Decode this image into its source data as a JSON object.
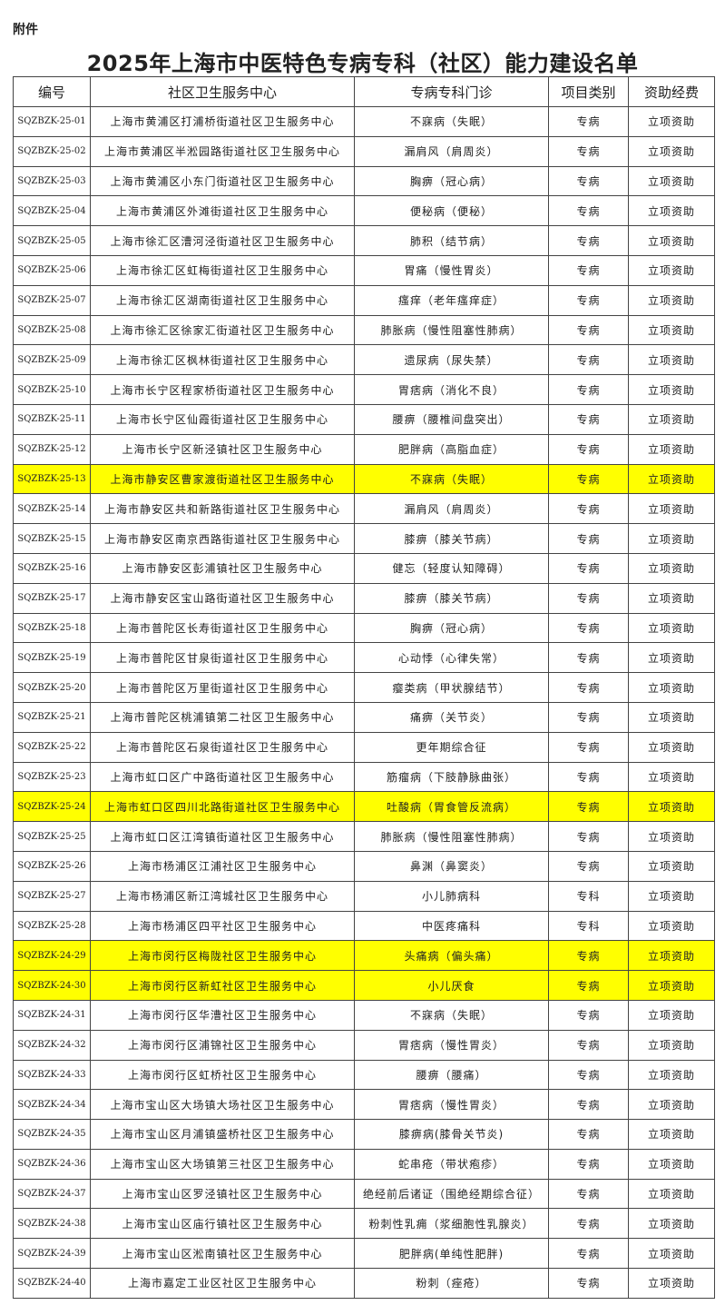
{
  "header": {
    "label": "附件",
    "title": "2025年上海市中医特色专病专科（社区）能力建设名单"
  },
  "table": {
    "columns": [
      "编号",
      "社区卫生服务中心",
      "专病专科门诊",
      "项目类别",
      "资助经费"
    ],
    "highlight_color": "#ffff00",
    "rows": [
      {
        "cells": [
          "SQZBZK-25-01",
          "上海市黄浦区打浦桥街道社区卫生服务中心",
          "不寐病（失眠）",
          "专病",
          "立项资助"
        ]
      },
      {
        "cells": [
          "SQZBZK-25-02",
          "上海市黄浦区半淞园路街道社区卫生服务中心",
          "漏肩风（肩周炎）",
          "专病",
          "立项资助"
        ]
      },
      {
        "cells": [
          "SQZBZK-25-03",
          "上海市黄浦区小东门街道社区卫生服务中心",
          "胸痹（冠心病）",
          "专病",
          "立项资助"
        ]
      },
      {
        "cells": [
          "SQZBZK-25-04",
          "上海市黄浦区外滩街道社区卫生服务中心",
          "便秘病（便秘）",
          "专病",
          "立项资助"
        ]
      },
      {
        "cells": [
          "SQZBZK-25-05",
          "上海市徐汇区漕河泾街道社区卫生服务中心",
          "肺积（结节病）",
          "专病",
          "立项资助"
        ]
      },
      {
        "cells": [
          "SQZBZK-25-06",
          "上海市徐汇区虹梅街道社区卫生服务中心",
          "胃痛（慢性胃炎）",
          "专病",
          "立项资助"
        ]
      },
      {
        "cells": [
          "SQZBZK-25-07",
          "上海市徐汇区湖南街道社区卫生服务中心",
          "瘙痒（老年瘙痒症）",
          "专病",
          "立项资助"
        ]
      },
      {
        "cells": [
          "SQZBZK-25-08",
          "上海市徐汇区徐家汇街道社区卫生服务中心",
          "肺胀病（慢性阻塞性肺病）",
          "专病",
          "立项资助"
        ]
      },
      {
        "cells": [
          "SQZBZK-25-09",
          "上海市徐汇区枫林街道社区卫生服务中心",
          "遗尿病（尿失禁）",
          "专病",
          "立项资助"
        ]
      },
      {
        "cells": [
          "SQZBZK-25-10",
          "上海市长宁区程家桥街道社区卫生服务中心",
          "胃痞病（消化不良）",
          "专病",
          "立项资助"
        ]
      },
      {
        "cells": [
          "SQZBZK-25-11",
          "上海市长宁区仙霞街道社区卫生服务中心",
          "腰痹（腰椎间盘突出）",
          "专病",
          "立项资助"
        ]
      },
      {
        "cells": [
          "SQZBZK-25-12",
          "上海市长宁区新泾镇社区卫生服务中心",
          "肥胖病（高脂血症）",
          "专病",
          "立项资助"
        ]
      },
      {
        "cells": [
          "SQZBZK-25-13",
          "上海市静安区曹家渡街道社区卫生服务中心",
          "不寐病（失眠）",
          "专病",
          "立项资助"
        ],
        "highlight": true
      },
      {
        "cells": [
          "SQZBZK-25-14",
          "上海市静安区共和新路街道社区卫生服务中心",
          "漏肩风（肩周炎）",
          "专病",
          "立项资助"
        ]
      },
      {
        "cells": [
          "SQZBZK-25-15",
          "上海市静安区南京西路街道社区卫生服务中心",
          "膝痹（膝关节病）",
          "专病",
          "立项资助"
        ]
      },
      {
        "cells": [
          "SQZBZK-25-16",
          "上海市静安区彭浦镇社区卫生服务中心",
          "健忘（轻度认知障碍）",
          "专病",
          "立项资助"
        ]
      },
      {
        "cells": [
          "SQZBZK-25-17",
          "上海市静安区宝山路街道社区卫生服务中心",
          "膝痹（膝关节病）",
          "专病",
          "立项资助"
        ]
      },
      {
        "cells": [
          "SQZBZK-25-18",
          "上海市普陀区长寿街道社区卫生服务中心",
          "胸痹（冠心病）",
          "专病",
          "立项资助"
        ]
      },
      {
        "cells": [
          "SQZBZK-25-19",
          "上海市普陀区甘泉街道社区卫生服务中心",
          "心动悸（心律失常）",
          "专病",
          "立项资助"
        ]
      },
      {
        "cells": [
          "SQZBZK-25-20",
          "上海市普陀区万里街道社区卫生服务中心",
          "瘿类病（甲状腺结节）",
          "专病",
          "立项资助"
        ]
      },
      {
        "cells": [
          "SQZBZK-25-21",
          "上海市普陀区桃浦镇第二社区卫生服务中心",
          "痛痹（关节炎）",
          "专病",
          "立项资助"
        ]
      },
      {
        "cells": [
          "SQZBZK-25-22",
          "上海市普陀区石泉街道社区卫生服务中心",
          "更年期综合征",
          "专病",
          "立项资助"
        ]
      },
      {
        "cells": [
          "SQZBZK-25-23",
          "上海市虹口区广中路街道社区卫生服务中心",
          "筋瘤病（下肢静脉曲张）",
          "专病",
          "立项资助"
        ]
      },
      {
        "cells": [
          "SQZBZK-25-24",
          "上海市虹口区四川北路街道社区卫生服务中心",
          "吐酸病（胃食管反流病）",
          "专病",
          "立项资助"
        ],
        "highlight": true
      },
      {
        "cells": [
          "SQZBZK-25-25",
          "上海市虹口区江湾镇街道社区卫生服务中心",
          "肺胀病（慢性阻塞性肺病）",
          "专病",
          "立项资助"
        ]
      },
      {
        "cells": [
          "SQZBZK-25-26",
          "上海市杨浦区江浦社区卫生服务中心",
          "鼻渊（鼻窦炎）",
          "专病",
          "立项资助"
        ]
      },
      {
        "cells": [
          "SQZBZK-25-27",
          "上海市杨浦区新江湾城社区卫生服务中心",
          "小儿肺病科",
          "专科",
          "立项资助"
        ]
      },
      {
        "cells": [
          "SQZBZK-25-28",
          "上海市杨浦区四平社区卫生服务中心",
          "中医疼痛科",
          "专科",
          "立项资助"
        ]
      },
      {
        "cells": [
          "SQZBZK-24-29",
          "上海市闵行区梅陇社区卫生服务中心",
          "头痛病（偏头痛）",
          "专病",
          "立项资助"
        ],
        "highlight": true
      },
      {
        "cells": [
          "SQZBZK-24-30",
          "上海市闵行区新虹社区卫生服务中心",
          "小儿厌食",
          "专病",
          "立项资助"
        ],
        "highlight": true
      },
      {
        "cells": [
          "SQZBZK-24-31",
          "上海市闵行区华漕社区卫生服务中心",
          "不寐病（失眠）",
          "专病",
          "立项资助"
        ]
      },
      {
        "cells": [
          "SQZBZK-24-32",
          "上海市闵行区浦锦社区卫生服务中心",
          "胃痞病（慢性胃炎）",
          "专病",
          "立项资助"
        ]
      },
      {
        "cells": [
          "SQZBZK-24-33",
          "上海市闵行区虹桥社区卫生服务中心",
          "腰痹（腰痛）",
          "专病",
          "立项资助"
        ]
      },
      {
        "cells": [
          "SQZBZK-24-34",
          "上海市宝山区大场镇大场社区卫生服务中心",
          "胃痞病（慢性胃炎）",
          "专病",
          "立项资助"
        ]
      },
      {
        "cells": [
          "SQZBZK-24-35",
          "上海市宝山区月浦镇盛桥社区卫生服务中心",
          "膝痹病(膝骨关节炎)",
          "专病",
          "立项资助"
        ]
      },
      {
        "cells": [
          "SQZBZK-24-36",
          "上海市宝山区大场镇第三社区卫生服务中心",
          "蛇串疮（带状疱疹）",
          "专病",
          "立项资助"
        ]
      },
      {
        "cells": [
          "SQZBZK-24-37",
          "上海市宝山区罗泾镇社区卫生服务中心",
          "绝经前后诸证（围绝经期综合征）",
          "专病",
          "立项资助"
        ]
      },
      {
        "cells": [
          "SQZBZK-24-38",
          "上海市宝山区庙行镇社区卫生服务中心",
          "粉刺性乳痈（浆细胞性乳腺炎）",
          "专病",
          "立项资助"
        ]
      },
      {
        "cells": [
          "SQZBZK-24-39",
          "上海市宝山区淞南镇社区卫生服务中心",
          "肥胖病(单纯性肥胖)",
          "专病",
          "立项资助"
        ]
      },
      {
        "cells": [
          "SQZBZK-24-40",
          "上海市嘉定工业区社区卫生服务中心",
          "粉刺（痤疮）",
          "专病",
          "立项资助"
        ]
      }
    ]
  }
}
